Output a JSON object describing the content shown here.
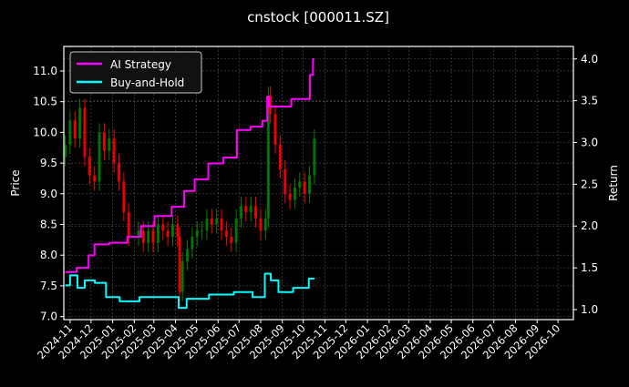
{
  "chart_data": {
    "type": "line",
    "title": "cnstock [000011.SZ]",
    "xlabel": "",
    "ylabel": "Price",
    "y2label": "Return",
    "xlim": [
      "2024-10-23",
      "2026-10-23"
    ],
    "ylim": [
      6.95,
      11.4
    ],
    "y2lim": [
      0.88,
      4.15
    ],
    "grid": true,
    "legend_position": "top-left",
    "x_ticks": [
      "2024-11",
      "2024-12",
      "2025-01",
      "2025-02",
      "2025-03",
      "2025-04",
      "2025-05",
      "2025-06",
      "2025-07",
      "2025-08",
      "2025-09",
      "2025-10",
      "2025-11",
      "2025-12",
      "2026-01",
      "2026-02",
      "2026-03",
      "2026-04",
      "2026-05",
      "2026-06",
      "2026-07",
      "2026-08",
      "2026-09",
      "2026-10"
    ],
    "y_ticks": [
      "7.0",
      "7.5",
      "8.0",
      "8.5",
      "9.0",
      "9.5",
      "10.0",
      "10.5",
      "11.0"
    ],
    "y2_ticks": [
      "1.0",
      "1.5",
      "2.0",
      "2.5",
      "3.0",
      "3.5",
      "4.0"
    ],
    "colors": {
      "up": "#008000",
      "down": "#ff0000",
      "ai": "#ff00ff",
      "bh": "#00ffff",
      "grid": "#555555"
    },
    "price": {
      "dates": [
        "2024-10-25",
        "2024-11-01",
        "2024-11-08",
        "2024-11-15",
        "2024-11-22",
        "2024-11-29",
        "2024-12-06",
        "2024-12-13",
        "2024-12-20",
        "2024-12-27",
        "2025-01-03",
        "2025-01-10",
        "2025-01-17",
        "2025-01-24",
        "2025-02-07",
        "2025-02-14",
        "2025-02-21",
        "2025-02-28",
        "2025-03-07",
        "2025-03-14",
        "2025-03-21",
        "2025-03-28",
        "2025-04-04",
        "2025-04-07",
        "2025-04-11",
        "2025-04-18",
        "2025-04-25",
        "2025-05-02",
        "2025-05-09",
        "2025-05-16",
        "2025-05-23",
        "2025-05-30",
        "2025-06-06",
        "2025-06-13",
        "2025-06-20",
        "2025-06-27",
        "2025-07-04",
        "2025-07-11",
        "2025-07-18",
        "2025-07-25",
        "2025-08-01",
        "2025-08-08",
        "2025-08-12",
        "2025-08-15",
        "2025-08-22",
        "2025-08-29",
        "2025-09-05",
        "2025-09-12",
        "2025-09-19",
        "2025-09-26",
        "2025-10-03",
        "2025-10-10",
        "2025-10-17"
      ],
      "close": [
        9.8,
        10.2,
        9.9,
        10.4,
        9.6,
        9.3,
        9.2,
        10.0,
        9.7,
        9.9,
        9.5,
        9.2,
        8.7,
        8.3,
        8.4,
        8.2,
        8.4,
        8.2,
        8.5,
        8.4,
        8.3,
        8.5,
        8.3,
        7.4,
        7.9,
        8.1,
        8.3,
        8.4,
        8.4,
        8.6,
        8.5,
        8.6,
        8.4,
        8.3,
        8.2,
        8.6,
        8.8,
        8.7,
        8.8,
        8.6,
        8.4,
        8.6,
        10.6,
        10.3,
        9.8,
        9.4,
        9.0,
        8.9,
        9.1,
        9.2,
        9.0,
        9.3,
        9.9
      ]
    },
    "series": [
      {
        "name": "AI Strategy",
        "axis": "right",
        "x": [
          "2024-10-25",
          "2024-11-27",
          "2024-11-28",
          "2024-12-14",
          "2025-01-09",
          "2025-02-04",
          "2025-02-17",
          "2025-03-15",
          "2025-04-07",
          "2025-04-20",
          "2025-05-07",
          "2025-05-29",
          "2025-06-19",
          "2025-07-07",
          "2025-07-28",
          "2025-08-10",
          "2025-08-11",
          "2025-08-15",
          "2025-09-10",
          "2025-09-18",
          "2025-10-08",
          "2025-10-13",
          "2025-10-17"
        ],
        "y": [
          1.45,
          1.5,
          1.65,
          1.78,
          1.8,
          1.87,
          2.0,
          2.12,
          2.23,
          2.42,
          2.56,
          2.75,
          2.82,
          3.15,
          3.19,
          3.26,
          3.55,
          3.43,
          3.43,
          3.52,
          3.52,
          3.81,
          4.0
        ]
      },
      {
        "name": "Buy-and-Hold",
        "axis": "right",
        "x": [
          "2024-10-25",
          "2024-11-08",
          "2024-11-15",
          "2024-11-29",
          "2024-12-14",
          "2024-12-31",
          "2025-01-22",
          "2025-02-26",
          "2025-04-04",
          "2025-04-07",
          "2025-04-27",
          "2025-06-10",
          "2025-07-07",
          "2025-08-03",
          "2025-08-11",
          "2025-08-20",
          "2025-09-02",
          "2025-10-01",
          "2025-10-17"
        ],
        "y": [
          1.29,
          1.41,
          1.26,
          1.35,
          1.32,
          1.15,
          1.1,
          1.15,
          1.15,
          1.02,
          1.13,
          1.18,
          1.21,
          1.15,
          1.43,
          1.35,
          1.21,
          1.26,
          1.37
        ]
      }
    ]
  }
}
